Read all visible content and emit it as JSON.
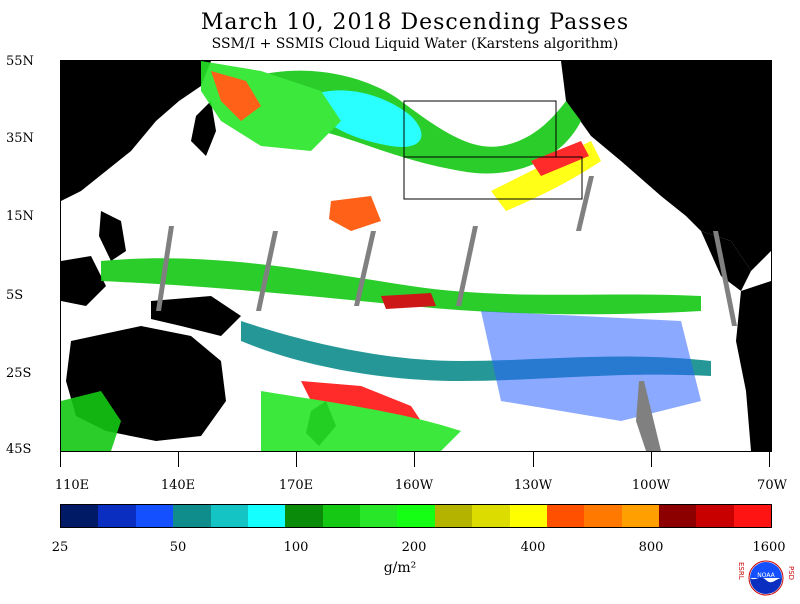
{
  "title": "March 10, 2018  Descending Passes",
  "subtitle": "SSM/I + SSMIS Cloud Liquid Water (Karstens algorithm)",
  "map": {
    "lat_labels": [
      "55N",
      "35N",
      "15N",
      "5S",
      "25S",
      "45S"
    ],
    "lon_labels": [
      "110E",
      "140E",
      "170E",
      "160W",
      "130W",
      "100W",
      "70W"
    ]
  },
  "colorbar": {
    "colors": [
      "#001a66",
      "#0a2fc0",
      "#1450ff",
      "#0f8c8c",
      "#14c3c3",
      "#14ffff",
      "#0a8c0a",
      "#14c814",
      "#28e628",
      "#14ff14",
      "#b4b400",
      "#dcdc00",
      "#ffff00",
      "#ff5000",
      "#ff7800",
      "#ffa000",
      "#8c0000",
      "#c80000",
      "#ff1414"
    ],
    "labels": [
      "25",
      "50",
      "100",
      "200",
      "400",
      "800",
      "1600"
    ]
  },
  "units": "g/m²",
  "logo": {
    "left_text": "ESRL",
    "right_text": "PSD",
    "center_text": "NOAA"
  }
}
